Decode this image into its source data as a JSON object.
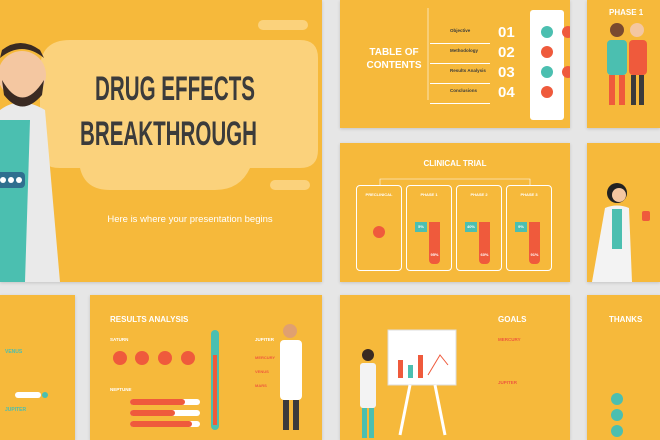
{
  "main_slide": {
    "title_line1": "DRUG EFFECTS",
    "title_line2": "BREAKTHROUGH",
    "subtitle": "Here is where your presentation begins"
  },
  "toc_slide": {
    "title": "TABLE OF CONTENTS",
    "items": [
      {
        "number": "01",
        "label": "Objective"
      },
      {
        "number": "02",
        "label": "Methodology"
      },
      {
        "number": "03",
        "label": "Results Analysis"
      },
      {
        "number": "04",
        "label": "Conclusions"
      }
    ]
  },
  "phase_slide": {
    "title": "PHASE 1"
  },
  "clinical_slide": {
    "title": "CLINICAL TRIAL",
    "columns": [
      {
        "label": "PRECLINICAL"
      },
      {
        "label": "PHASE 1",
        "top": "5%",
        "bottom": "95%"
      },
      {
        "label": "PHASE 2",
        "top": "40%",
        "bottom": "60%"
      },
      {
        "label": "PHASE 3",
        "top": "9%",
        "bottom": "91%"
      }
    ]
  },
  "results_slide": {
    "title": "RESULTS ANALYSIS",
    "left_sections": [
      "SATURN",
      "NEPTUNE"
    ],
    "right_title": "JUPITER",
    "right_items": [
      "MERCURY",
      "VENUS",
      "MARS"
    ]
  },
  "goals_slide": {
    "title": "GOALS",
    "items": [
      "MERCURY",
      "JUPITER"
    ]
  },
  "thanks_slide": {
    "title": "THANKS"
  },
  "side_slide": {
    "items": [
      "VENUS",
      "JUPITER"
    ]
  }
}
